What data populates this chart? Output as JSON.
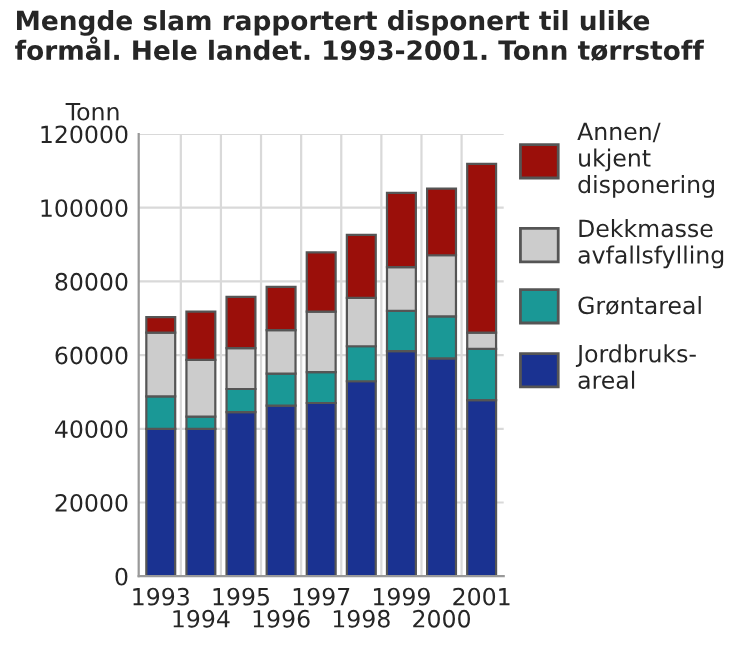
{
  "chart_data": {
    "type": "bar",
    "stacked": true,
    "title": "Mengde slam rapportert disponert til ulike formål. Hele landet. 1993-2001. Tonn tørrstoff",
    "ylabel": "Tonn",
    "categories": [
      "1993",
      "1994",
      "1995",
      "1996",
      "1997",
      "1998",
      "1999",
      "2000",
      "2001"
    ],
    "series": [
      {
        "name": "Jordbruks-\nareal",
        "color": "#1a3291",
        "values": [
          40000,
          40000,
          44500,
          46300,
          47000,
          52900,
          61100,
          59100,
          47800
        ]
      },
      {
        "name": "Grøntareal",
        "color": "#1a9896",
        "values": [
          8800,
          3300,
          6300,
          8700,
          8400,
          9500,
          10900,
          11400,
          13900
        ]
      },
      {
        "name": "Dekkmasse\navfallsfylling",
        "color": "#cccccc",
        "values": [
          17300,
          15400,
          11100,
          11800,
          16400,
          13100,
          11900,
          16600,
          4400
        ]
      },
      {
        "name": "Annen/\nukjent\ndisponering",
        "color": "#9b0f0a",
        "values": [
          4200,
          13100,
          13900,
          11700,
          16100,
          17100,
          20100,
          18100,
          45800
        ]
      }
    ],
    "ylim": [
      0,
      120000
    ],
    "yticks": [
      0,
      20000,
      40000,
      60000,
      80000,
      100000,
      120000
    ],
    "grid": true,
    "legend": "right"
  }
}
